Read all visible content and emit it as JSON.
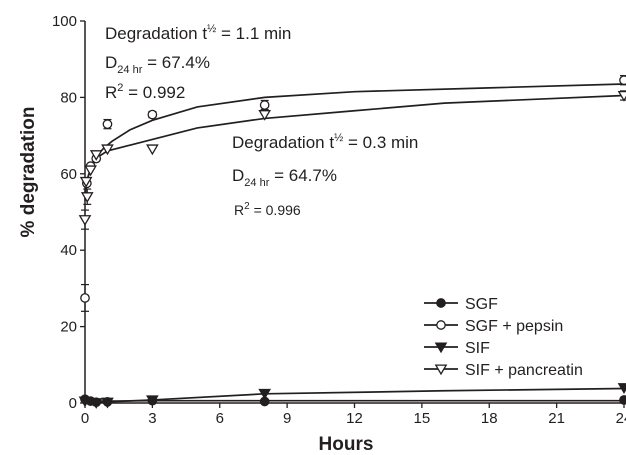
{
  "chart_data": {
    "type": "scatter",
    "title": "",
    "xlabel": "Hours",
    "ylabel": "% degradation",
    "xlim": [
      0,
      24
    ],
    "ylim": [
      0,
      100
    ],
    "x_ticks": [
      "0",
      "3",
      "6",
      "9",
      "12",
      "15",
      "18",
      "21",
      "24"
    ],
    "y_ticks": [
      "0",
      "20",
      "40",
      "60",
      "80",
      "100"
    ],
    "grid": false,
    "legend_position": "bottom-right",
    "series": [
      {
        "name": "SGF",
        "marker": "filled-circle",
        "points": [
          [
            0,
            1.0
          ],
          [
            0.25,
            0.5
          ],
          [
            0.5,
            0.2
          ],
          [
            1,
            0.3
          ],
          [
            3,
            0.6
          ],
          [
            8,
            0.4
          ],
          [
            24,
            0.8
          ]
        ],
        "curve": [
          [
            0,
            0.8
          ],
          [
            0.5,
            0.5
          ],
          [
            1,
            0.5
          ],
          [
            3,
            0.6
          ],
          [
            8,
            0.6
          ],
          [
            24,
            0.6
          ]
        ]
      },
      {
        "name": "SGF + pepsin",
        "marker": "open-circle",
        "points": [
          [
            0,
            27.5
          ],
          [
            0.083,
            57.5
          ],
          [
            0.25,
            62
          ],
          [
            0.5,
            64
          ],
          [
            1,
            73
          ],
          [
            3,
            75.5
          ],
          [
            8,
            78
          ],
          [
            24,
            84.5
          ]
        ],
        "errors": [
          [
            0,
            3.5
          ],
          [
            1,
            1.2
          ],
          [
            3,
            0.8
          ],
          [
            8,
            1.2
          ],
          [
            24,
            1.2
          ]
        ],
        "curve": [
          [
            0,
            55
          ],
          [
            0.05,
            57
          ],
          [
            0.15,
            59.5
          ],
          [
            0.3,
            62.5
          ],
          [
            0.5,
            64.5
          ],
          [
            0.8,
            66.5
          ],
          [
            1.2,
            68.5
          ],
          [
            2,
            71.5
          ],
          [
            3,
            74
          ],
          [
            5,
            77.5
          ],
          [
            8,
            80
          ],
          [
            12,
            81.5
          ],
          [
            18,
            82.5
          ],
          [
            24,
            83.5
          ]
        ]
      },
      {
        "name": "SIF",
        "marker": "filled-triangle-down",
        "points": [
          [
            0,
            0.5
          ],
          [
            0.5,
            0.1
          ],
          [
            1,
            0.2
          ],
          [
            3,
            0.8
          ],
          [
            8,
            2.5
          ],
          [
            24,
            4.0
          ]
        ],
        "curve": [
          [
            0,
            0.2
          ],
          [
            1,
            0.3
          ],
          [
            3,
            0.8
          ],
          [
            8,
            2.4
          ],
          [
            16,
            3.2
          ],
          [
            24,
            3.8
          ]
        ]
      },
      {
        "name": "SIF + pancreatin",
        "marker": "open-triangle-down",
        "points": [
          [
            0,
            48
          ],
          [
            0.05,
            58
          ],
          [
            0.1,
            54
          ],
          [
            0.25,
            61
          ],
          [
            0.5,
            65
          ],
          [
            1,
            66.5
          ],
          [
            3,
            66.5
          ],
          [
            8,
            75.5
          ],
          [
            24,
            80.5
          ]
        ],
        "errors": [
          [
            0,
            2.5
          ],
          [
            0.1,
            2.0
          ],
          [
            24,
            1.2
          ]
        ],
        "curve": [
          [
            0,
            53
          ],
          [
            0.05,
            56.5
          ],
          [
            0.15,
            59.5
          ],
          [
            0.3,
            62
          ],
          [
            0.6,
            64.5
          ],
          [
            1,
            66
          ],
          [
            2,
            67.5
          ],
          [
            3,
            69
          ],
          [
            5,
            72
          ],
          [
            8,
            74.5
          ],
          [
            12,
            76.5
          ],
          [
            16,
            78.5
          ],
          [
            20,
            79.5
          ],
          [
            24,
            80.5
          ]
        ]
      }
    ],
    "annotations": {
      "pepsin": {
        "line1_pre": "Degradation t",
        "line1_sup": "½",
        "line1_post": " = 1.1 min",
        "line2_pre": "D",
        "line2_sub": "24 hr",
        "line2_post": " = 67.4%",
        "line3_pre": "R",
        "line3_sup": "2",
        "line3_post": " = 0.992"
      },
      "pancreatin": {
        "line1_pre": "Degradation t",
        "line1_sup": "½",
        "line1_post": " = 0.3 min",
        "line2_pre": "D",
        "line2_sub": "24 hr",
        "line2_post": " = 64.7%",
        "line3_pre": "R",
        "line3_sup": "2",
        "line3_post": " = 0.996"
      }
    }
  },
  "colors": {
    "ink": "#231f20",
    "background": "#ffffff"
  }
}
